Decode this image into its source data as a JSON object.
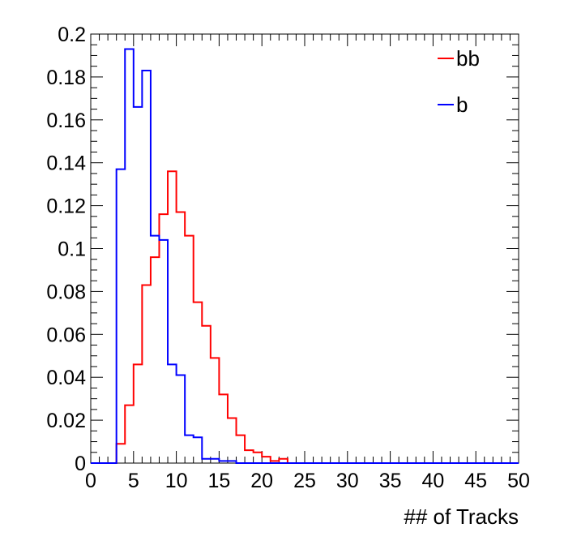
{
  "chart_data": {
    "type": "line",
    "title": "",
    "xlabel": "## of Tracks",
    "ylabel": "",
    "xlim": [
      0,
      50
    ],
    "ylim": [
      0,
      0.2
    ],
    "bin_width": 1,
    "x_tick_labels": [
      "0",
      "5",
      "10",
      "15",
      "20",
      "25",
      "30",
      "35",
      "40",
      "45",
      "50"
    ],
    "y_tick_labels": [
      "0",
      "0.02",
      "0.04",
      "0.06",
      "0.08",
      "0.1",
      "0.12",
      "0.14",
      "0.16",
      "0.18",
      "0.2"
    ],
    "legend_position": "top-right",
    "series": [
      {
        "name": "bb",
        "color": "#ff0000",
        "values": [
          0,
          0,
          0,
          0.009,
          0.027,
          0.046,
          0.083,
          0.096,
          0.116,
          0.136,
          0.117,
          0.106,
          0.075,
          0.064,
          0.049,
          0.032,
          0.021,
          0.013,
          0.006,
          0.005,
          0.003,
          0.001,
          0.002,
          0,
          0,
          0,
          0,
          0,
          0,
          0,
          0,
          0,
          0,
          0,
          0,
          0,
          0,
          0,
          0,
          0,
          0,
          0,
          0,
          0,
          0,
          0,
          0,
          0,
          0,
          0
        ]
      },
      {
        "name": "b",
        "color": "#0000ff",
        "values": [
          0,
          0,
          0,
          0.137,
          0.193,
          0.166,
          0.183,
          0.106,
          0.104,
          0.046,
          0.041,
          0.013,
          0.012,
          0.002,
          0.002,
          0.001,
          0.001,
          0,
          0,
          0,
          0,
          0,
          0,
          0,
          0,
          0,
          0,
          0,
          0,
          0,
          0,
          0,
          0,
          0,
          0,
          0,
          0,
          0,
          0,
          0,
          0,
          0,
          0,
          0,
          0,
          0,
          0,
          0,
          0,
          0
        ]
      }
    ]
  }
}
